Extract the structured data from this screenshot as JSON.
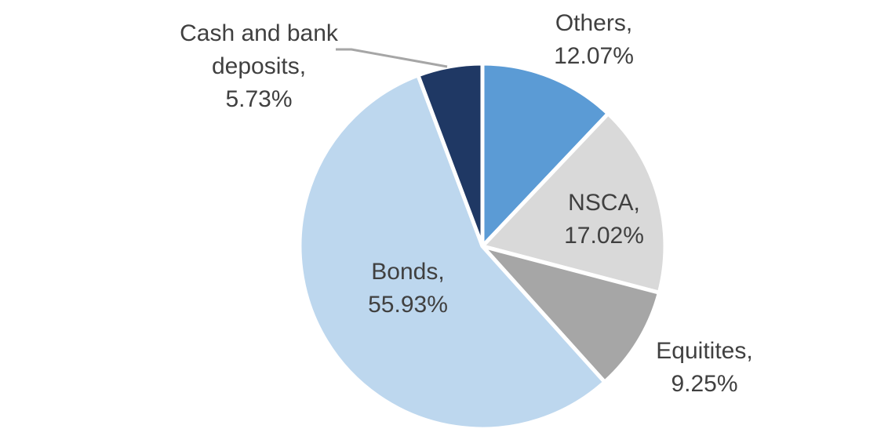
{
  "chart_data": {
    "type": "pie",
    "title": "",
    "categories": [
      "Others",
      "NSCA",
      "Equitites",
      "Bonds",
      "Cash and bank deposits"
    ],
    "values": [
      12.07,
      17.02,
      9.25,
      55.93,
      5.73
    ],
    "value_format": "percent",
    "start_angle_deg": 0,
    "direction": "clockwise",
    "colors": [
      "#5B9BD5",
      "#D9D9D9",
      "#A6A6A6",
      "#BDD7EE",
      "#1F3864"
    ],
    "slice_border_color": "#FFFFFF",
    "label_text_color": "#404040",
    "leader_line_color": "#A6A6A6",
    "legend": "none",
    "labels": [
      {
        "for": "Others",
        "lines": [
          "Others,",
          "12.07%"
        ]
      },
      {
        "for": "NSCA",
        "lines": [
          "NSCA,",
          "17.02%"
        ]
      },
      {
        "for": "Equitites",
        "lines": [
          "Equitites,",
          "9.25%"
        ]
      },
      {
        "for": "Bonds",
        "lines": [
          "Bonds,",
          "55.93%"
        ]
      },
      {
        "for": "Cash and bank deposits",
        "lines": [
          "Cash and bank",
          "deposits,",
          "5.73%"
        ]
      }
    ]
  }
}
